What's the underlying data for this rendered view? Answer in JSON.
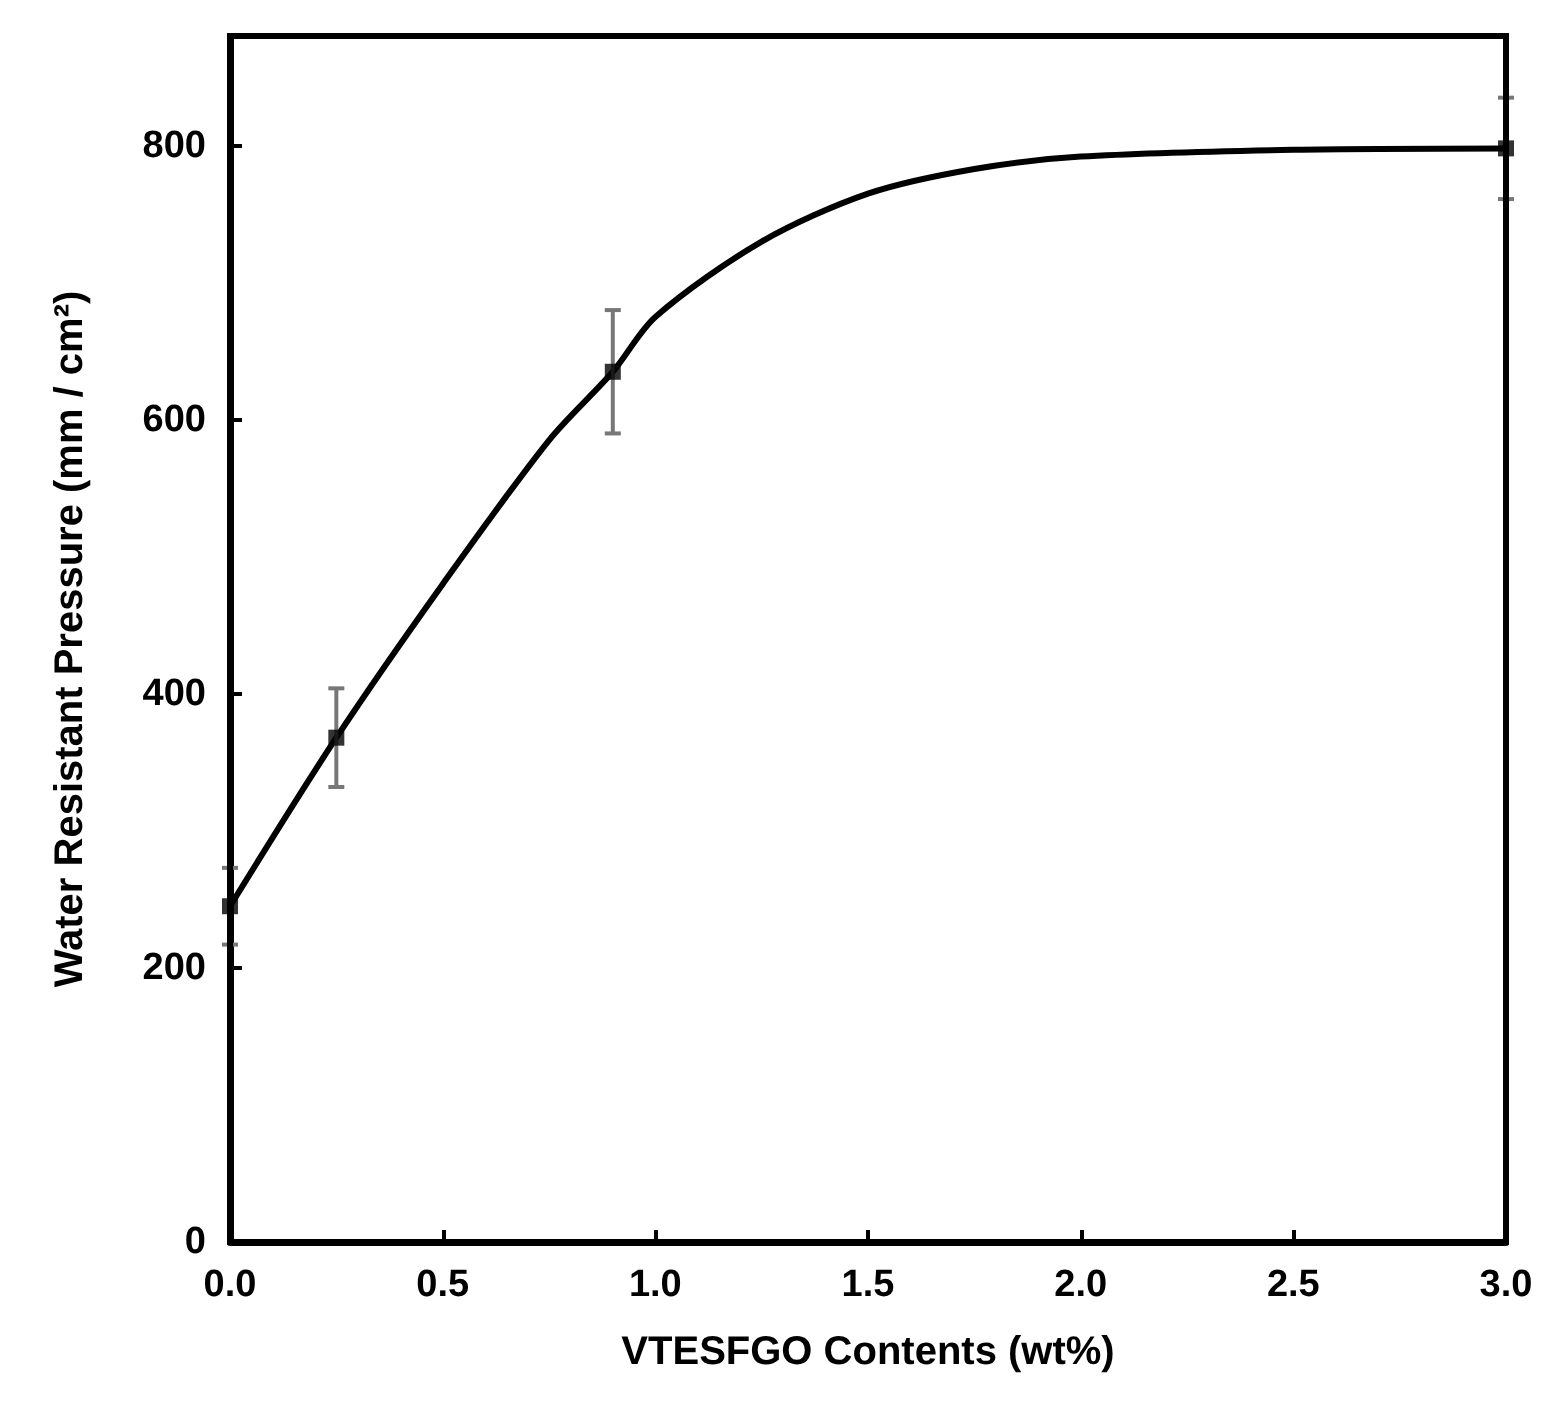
{
  "chart_data": {
    "type": "scatter",
    "xlabel": "VTESFGO Contents (wt%)",
    "ylabel": "Water Resistant Pressure (mm / cm²)",
    "marker": "square",
    "grid": false,
    "xlim": [
      0,
      3
    ],
    "xticks": [
      {
        "value": 0,
        "label": "0.0"
      },
      {
        "value": 0.5,
        "label": "0.5"
      },
      {
        "value": 1,
        "label": "1.0"
      },
      {
        "value": 1.5,
        "label": "1.5"
      },
      {
        "value": 2,
        "label": "2.0"
      },
      {
        "value": 2.5,
        "label": "2.5"
      },
      {
        "value": 3,
        "label": "3.0"
      }
    ],
    "ylim": [
      0,
      880
    ],
    "yticks": [
      0,
      200,
      400,
      600,
      800
    ],
    "series": [
      {
        "color": "#000000",
        "x": [
          0,
          0.25,
          0.9,
          3.0
        ],
        "values": [
          245,
          368,
          635,
          798
        ],
        "errors": [
          28,
          36,
          45,
          37
        ]
      },
      {
        "type": "line",
        "color": "#000000",
        "marker": "none",
        "x": [
          0,
          0.25,
          0.5,
          0.75,
          0.9,
          1.0,
          1.25,
          1.5,
          1.75,
          2.0,
          2.5,
          3.0
        ],
        "values": [
          245,
          368,
          480,
          585,
          635,
          675,
          730,
          765,
          783,
          792,
          797,
          798
        ]
      }
    ]
  }
}
